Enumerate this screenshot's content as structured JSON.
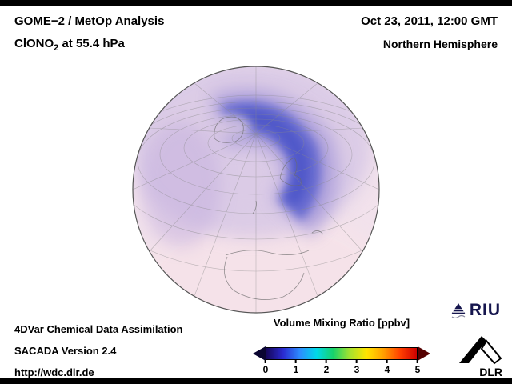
{
  "header": {
    "title_line1": "GOME−2 / MetOp Analysis",
    "title_line2_prefix": "ClONO",
    "title_line2_sub": "2",
    "title_line2_suffix": " at 55.4 hPa",
    "date": "Oct 23, 2011, 12:00 GMT",
    "region": "Northern Hemisphere"
  },
  "footer": {
    "line1": "4DVar Chemical Data Assimilation",
    "line2": "SACADA Version 2.4",
    "line3": "http://wdc.dlr.de"
  },
  "colorbar": {
    "title": "Volume Mixing Ratio [ppbv]",
    "ticks": [
      "0",
      "1",
      "2",
      "3",
      "4",
      "5"
    ],
    "stops": [
      "#16065a",
      "#2a2ad0",
      "#2d8cff",
      "#00d9e8",
      "#18d26a",
      "#a6e22e",
      "#ffe400",
      "#ffa000",
      "#ff4000",
      "#cf0000"
    ],
    "left_tip": "#0a0530",
    "right_tip": "#550000"
  },
  "logos": {
    "riu": "RIU",
    "dlr": "DLR"
  },
  "chart_data": {
    "type": "heatmap",
    "title": "GOME−2 / MetOp Analysis — ClONO2 at 55.4 hPa",
    "datetime": "Oct 23, 2011, 12:00 GMT",
    "region": "Northern Hemisphere",
    "projection": "orthographic globe, North Pole near top center, Europe/Africa facing viewer",
    "variable": "ClONO2 volume mixing ratio",
    "units": "ppbv",
    "colorbar": {
      "label": "Volume Mixing Ratio [ppbv]",
      "range": [
        0,
        5
      ],
      "ticks": [
        0,
        1,
        2,
        3,
        4,
        5
      ],
      "style": "rainbow with pointed arrow ends (dark blue to dark red)"
    },
    "features": [
      {
        "region": "Arctic polar cap crescent over Scandinavia / NW Russia",
        "approx_value_ppbv": 1.2,
        "rendered_color": "#4a52c8"
      },
      {
        "region": "high-latitude ring around pole (Greenland to Siberia)",
        "approx_value_ppbv": 0.8,
        "rendered_color": "#9b8fd8"
      },
      {
        "region": "mid-latitude lavender wash (N. Atlantic, Europe)",
        "approx_value_ppbv": 0.5,
        "rendered_color": "#cfc0e4"
      },
      {
        "region": "subtropics / low latitudes (Africa, S. Atlantic rim)",
        "approx_value_ppbv": 0.2,
        "rendered_color": "#f2e2ec"
      }
    ],
    "graticule": "grey latitude/longitude grid converging at pole",
    "attribution": [
      "4DVar Chemical Data Assimilation",
      "SACADA Version 2.4",
      "http://wdc.dlr.de"
    ]
  }
}
